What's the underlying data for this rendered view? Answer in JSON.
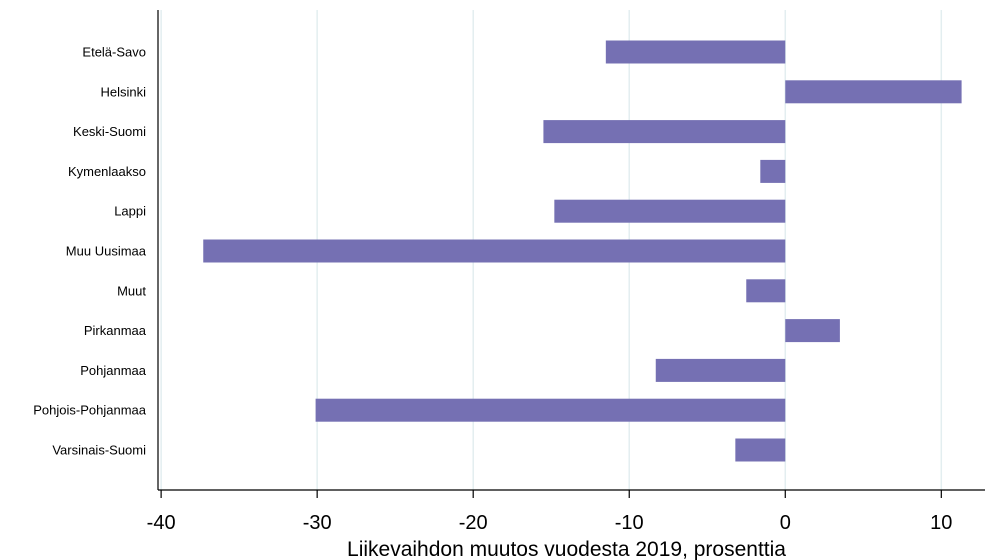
{
  "chart_data": {
    "type": "bar",
    "orientation": "horizontal",
    "categories": [
      "Etelä-Savo",
      "Helsinki",
      "Keski-Suomi",
      "Kymenlaakso",
      "Lappi",
      "Muu Uusimaa",
      "Muut",
      "Pirkanmaa",
      "Pohjanmaa",
      "Pohjois-Pohjanmaa",
      "Varsinais-Suomi"
    ],
    "values": [
      -11.5,
      11.3,
      -15.5,
      -1.6,
      -14.8,
      -37.3,
      -2.5,
      3.5,
      -8.3,
      -30.1,
      -3.2
    ],
    "xlabel": "Liikevaihdon muutos vuodesta 2019, prosenttia",
    "xlim": [
      -40.2,
      12.8
    ],
    "xticks": [
      -40,
      -30,
      -20,
      -10,
      0,
      10
    ],
    "grid": "vertical",
    "bar_color": "#7570b3",
    "grid_color": "#e3eef0"
  }
}
